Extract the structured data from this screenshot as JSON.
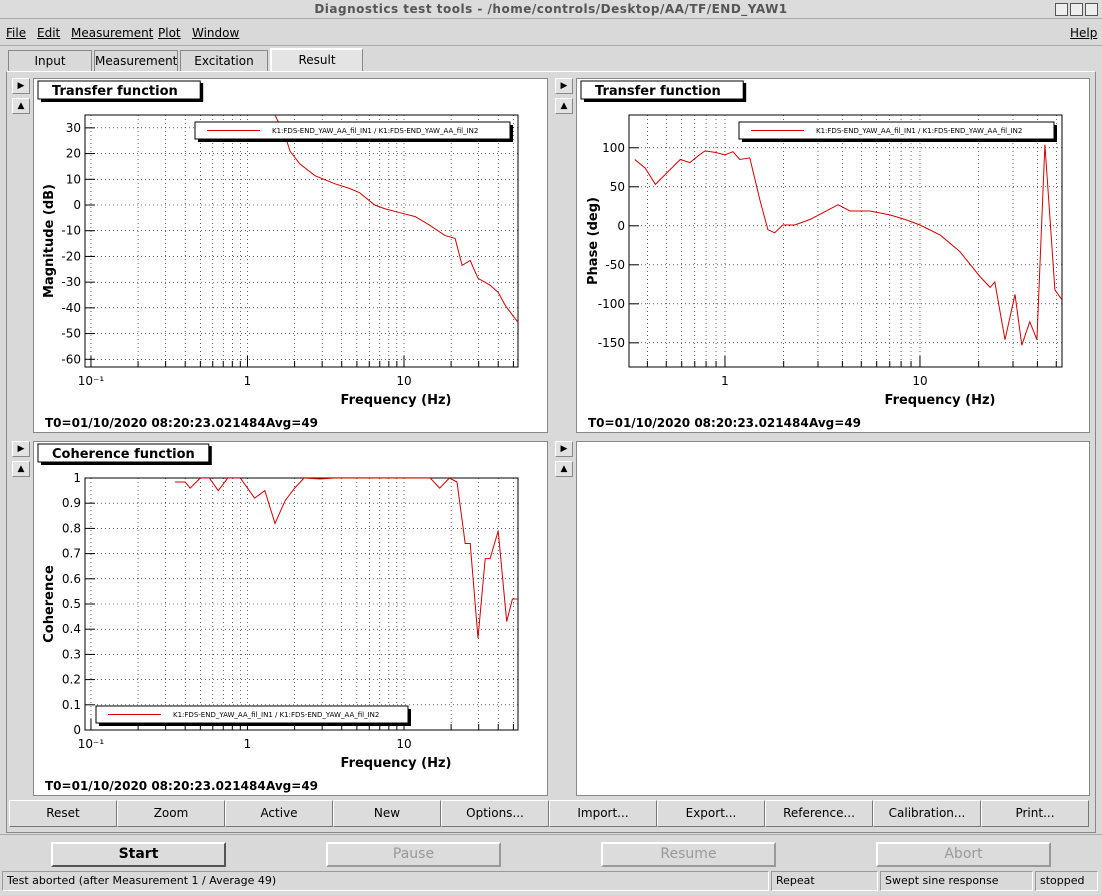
{
  "window_title": "Diagnostics test tools - /home/controls/Desktop/AA/TF/END_YAW1",
  "menu": [
    "File",
    "Edit",
    "Measurement",
    "Plot",
    "Window"
  ],
  "help_menu": "Help",
  "tabs": [
    {
      "label": "Input",
      "selected": false
    },
    {
      "label": "Measurement",
      "selected": false
    },
    {
      "label": "Excitation",
      "selected": false
    },
    {
      "label": "Result",
      "selected": true
    }
  ],
  "buttons": [
    "Reset",
    "Zoom",
    "Active",
    "New",
    "Options...",
    "Import...",
    "Export...",
    "Reference...",
    "Calibration...",
    "Print..."
  ],
  "controls": [
    {
      "label": "Start",
      "enabled": true
    },
    {
      "label": "Pause",
      "enabled": false
    },
    {
      "label": "Resume",
      "enabled": false
    },
    {
      "label": "Abort",
      "enabled": false
    }
  ],
  "status": [
    "Test aborted (after Measurement 1 / Average 49)",
    "Repeat",
    "Swept sine response",
    "stopped"
  ],
  "chart_data": [
    {
      "type": "line",
      "title": "Transfer function",
      "xlabel": "Frequency (Hz)",
      "ylabel": "Magnitude (dB)",
      "footer": [
        "T0=01/10/2020 08:20:23.021484",
        "Avg=49"
      ],
      "log_x": true,
      "grid": true,
      "legend_position": "top-right",
      "xlim": [
        0.0916,
        53.5
      ],
      "ylim": [
        -63,
        35
      ],
      "xticks": [
        {
          "value": 0.1,
          "label": "10⁻¹"
        },
        1,
        10
      ],
      "x_minor_ticks": [
        0.2,
        0.3,
        0.4,
        0.5,
        0.6,
        0.7,
        0.8,
        0.9,
        2,
        3,
        4,
        5,
        6,
        7,
        8,
        9,
        20,
        30,
        40,
        50
      ],
      "yticks": [
        -60,
        -50,
        -40,
        -30,
        -20,
        -10,
        0,
        10,
        20,
        30
      ],
      "x": [
        1.5,
        1.74,
        1.87,
        2.16,
        2.7,
        3.6,
        4.5,
        5.2,
        6.5,
        7.5,
        9.4,
        11.8,
        14.7,
        18.3,
        21.2,
        23.5,
        26.5,
        29.7,
        35.5,
        40,
        44.3,
        50,
        53.5
      ],
      "series": [
        {
          "name": "K1:FDS-END_YAW_AA_fil_IN1 / K1:FDS-END_YAW_AA_fil_IN2",
          "color": "#d40000",
          "values": [
            35,
            27,
            21,
            16,
            11.4,
            8.3,
            6.4,
            4.8,
            0,
            -1.4,
            -3,
            -4.5,
            -8,
            -11.9,
            -13,
            -23.5,
            -21.6,
            -28.5,
            -31.2,
            -34,
            -39,
            -43.3,
            -45.6
          ]
        }
      ]
    },
    {
      "type": "line",
      "title": "Transfer function",
      "xlabel": "Frequency (Hz)",
      "ylabel": "Phase (deg)",
      "footer": [
        "T0=01/10/2020 08:20:23.021484",
        "Avg=49"
      ],
      "log_x": true,
      "grid": true,
      "legend_position": "top-right",
      "xlim": [
        0.322,
        53.5
      ],
      "ylim": [
        -181,
        142
      ],
      "xticks": [
        1,
        10
      ],
      "x_minor_ticks": [
        0.4,
        0.5,
        0.6,
        0.7,
        0.8,
        0.9,
        2,
        3,
        4,
        5,
        6,
        7,
        8,
        9,
        20,
        30,
        40,
        50
      ],
      "yticks": [
        -150,
        -100,
        -50,
        0,
        50,
        100
      ],
      "x": [
        0.345,
        0.39,
        0.44,
        0.49,
        0.59,
        0.66,
        0.74,
        0.79,
        0.89,
        1.0,
        1.1,
        1.19,
        1.34,
        1.51,
        1.66,
        1.8,
        1.98,
        2.28,
        2.73,
        3.26,
        3.8,
        4.37,
        5.54,
        7.0,
        8.4,
        10,
        12.7,
        16,
        20.3,
        22.9,
        24.2,
        27.3,
        30.7,
        33.3,
        36.6,
        39.8,
        43.7,
        49.2,
        53.5
      ],
      "series": [
        {
          "name": "K1:FDS-END_YAW_AA_fil_IN1 / K1:FDS-END_YAW_AA_fil_IN2",
          "color": "#d40000",
          "values": [
            85,
            74,
            53,
            65,
            85,
            81,
            91,
            96,
            94,
            91,
            95,
            85,
            87,
            33,
            -5,
            -9,
            1,
            1,
            8,
            18,
            27,
            19,
            19,
            14,
            8,
            1,
            -12,
            -33,
            -65,
            -79,
            -72,
            -146,
            -88,
            -153,
            -123,
            -146,
            104,
            -82,
            -95
          ]
        }
      ]
    },
    {
      "type": "line",
      "title": "Coherence function",
      "xlabel": "Frequency (Hz)",
      "ylabel": "Coherence",
      "footer": [
        "T0=01/10/2020 08:20:23.021484",
        "Avg=49"
      ],
      "log_x": true,
      "grid": true,
      "legend_position": "bottom-left",
      "xlim": [
        0.0916,
        53.5
      ],
      "ylim": [
        0,
        1
      ],
      "xticks": [
        {
          "value": 0.1,
          "label": "10⁻¹"
        },
        1,
        10
      ],
      "x_minor_ticks": [
        0.2,
        0.3,
        0.4,
        0.5,
        0.6,
        0.7,
        0.8,
        0.9,
        2,
        3,
        4,
        5,
        6,
        7,
        8,
        9,
        20,
        30,
        40,
        50
      ],
      "yticks": [
        0,
        0.1,
        0.2,
        0.3,
        0.4,
        0.5,
        0.6,
        0.7,
        0.8,
        0.9,
        1
      ],
      "x": [
        0.344,
        0.4,
        0.43,
        0.5,
        0.57,
        0.65,
        0.75,
        0.9,
        1.0,
        1.11,
        1.29,
        1.5,
        1.74,
        2.0,
        2.3,
        2.9,
        3.6,
        5.2,
        9.4,
        14.7,
        16.9,
        19.5,
        21.8,
        24.6,
        26.5,
        29.7,
        33,
        35.5,
        40,
        45.3,
        49.3,
        53.5
      ],
      "series": [
        {
          "name": "K1:FDS-END_YAW_AA_fil_IN1 / K1:FDS-END_YAW_AA_fil_IN2",
          "color": "#d40000",
          "values": [
            0.984,
            0.984,
            0.96,
            1.0,
            1.0,
            0.95,
            1.0,
            1.0,
            0.96,
            0.92,
            0.95,
            0.82,
            0.91,
            0.96,
            1.0,
            0.996,
            1.0,
            1.0,
            1.0,
            1.0,
            0.96,
            1.0,
            0.984,
            0.74,
            0.74,
            0.365,
            0.68,
            0.68,
            0.79,
            0.43,
            0.52,
            0.52
          ]
        }
      ]
    }
  ]
}
